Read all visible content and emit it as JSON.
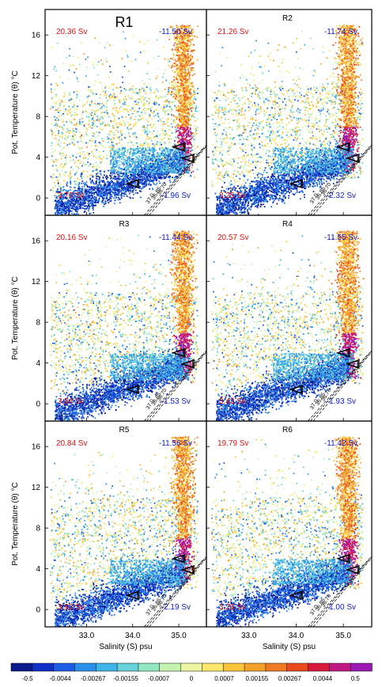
{
  "chart_data": {
    "type": "scatter",
    "description_kind": "theta-S diagram panels",
    "xlabel": "Salinity (S) psu",
    "ylabel": "Pot. Temperature (θ) °C",
    "xlim": [
      32.1,
      35.6
    ],
    "ylim": [
      -1.7,
      18.5
    ],
    "xticks": [
      "33.0",
      "34.0",
      "35.0"
    ],
    "xtick_values": [
      33.0,
      34.0,
      35.0
    ],
    "yticks": [
      "0",
      "4",
      "8",
      "12",
      "16"
    ],
    "ytick_values": [
      0,
      4,
      8,
      12,
      16
    ],
    "density_labels": [
      "37.0",
      "36.85",
      "36.70"
    ],
    "colorbar": {
      "labels": [
        "-0.5",
        "-0.0044",
        "-0.00267",
        "-0.00155",
        "-0.0007",
        "0",
        "0.0007",
        "0.00155",
        "0.00267",
        "0.0044",
        "0.5"
      ],
      "colors": [
        "#0a1a8c",
        "#1030c8",
        "#1e5ee6",
        "#2a8fe8",
        "#3fb4e6",
        "#66d1d8",
        "#8fe6c0",
        "#c6f2b0",
        "#eef5a0",
        "#f9e66a",
        "#f8c43a",
        "#f4a12c",
        "#f07a24",
        "#ea4a1e",
        "#d81a3c",
        "#c01a82",
        "#9c1ab4"
      ]
    },
    "panels": [
      {
        "label": "R1",
        "pos_transport": "20.36 Sv",
        "neg_transport": "-11.50 Sv",
        "low_left": "3.70 Sv",
        "low_right": "-1.96 Sv"
      },
      {
        "label": "R2",
        "pos_transport": "21.26 Sv",
        "neg_transport": "-11.74 Sv",
        "low_left": "3.25 Sv",
        "low_right": "-2.32 Sv"
      },
      {
        "label": "R3",
        "pos_transport": "20.16 Sv",
        "neg_transport": "-11.44 Sv",
        "low_left": "3.84 Sv",
        "low_right": "-1.53 Sv"
      },
      {
        "label": "R4",
        "pos_transport": "20.57 Sv",
        "neg_transport": "-11.55 Sv",
        "low_left": "3.43 Sv",
        "low_right": "-1.93 Sv"
      },
      {
        "label": "R5",
        "pos_transport": "20.84 Sv",
        "neg_transport": "-11.56 Sv",
        "low_left": "3.93 Sv",
        "low_right": "-2.19 Sv"
      },
      {
        "label": "R6",
        "pos_transport": "19.79 Sv",
        "neg_transport": "-11.42 Sv",
        "low_left": "3.29 Sv",
        "low_right": "-1.00 Sv"
      }
    ]
  }
}
